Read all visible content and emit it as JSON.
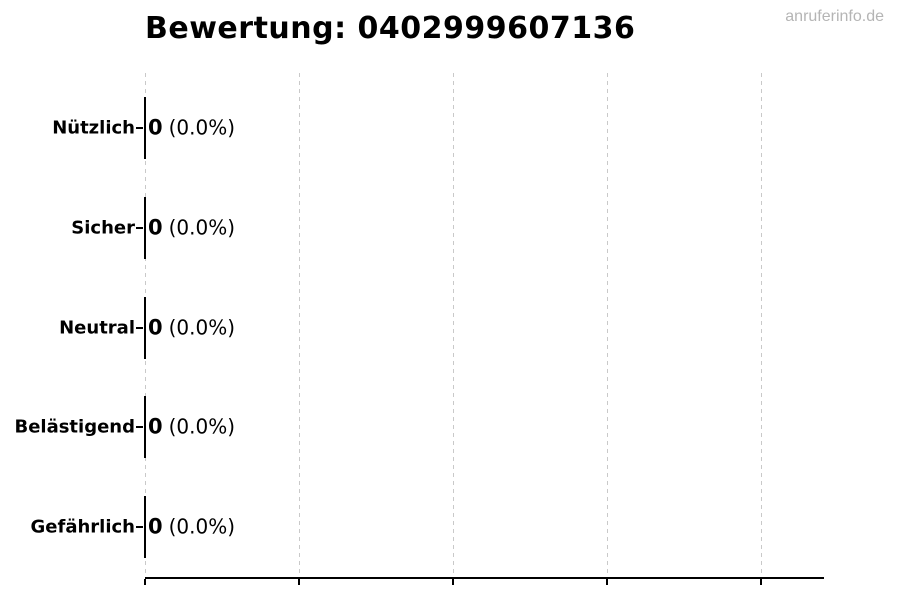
{
  "header": {
    "title": "Bewertung: 0402999607136",
    "watermark": "anruferinfo.de"
  },
  "chart_data": {
    "type": "bar",
    "orientation": "horizontal",
    "title": "Bewertung: 0402999607136",
    "categories": [
      "Nützlich",
      "Sicher",
      "Neutral",
      "Belästigend",
      "Gefährlich"
    ],
    "values": [
      0,
      0,
      0,
      0,
      0
    ],
    "percentages": [
      0.0,
      0.0,
      0.0,
      0.0,
      0.0
    ],
    "annotations": [
      "0 (0.0%)",
      "0 (0.0%)",
      "0 (0.0%)",
      "0 (0.0%)",
      "0 (0.0%)"
    ],
    "percent_display": [
      "(0.0%)",
      "(0.0%)",
      "(0.0%)",
      "(0.0%)",
      "(0.0%)"
    ],
    "xlabel": "",
    "ylabel": "",
    "x_tick_labels": [],
    "x_tick_count": 5,
    "grid": "vertical-dashed",
    "legend": "none",
    "colors": {
      "bar_edge": "#000000",
      "gridline": "#c9c9c9",
      "axis": "#000000",
      "text": "#000000",
      "watermark": "#b5b5b5",
      "background": "#ffffff"
    }
  }
}
